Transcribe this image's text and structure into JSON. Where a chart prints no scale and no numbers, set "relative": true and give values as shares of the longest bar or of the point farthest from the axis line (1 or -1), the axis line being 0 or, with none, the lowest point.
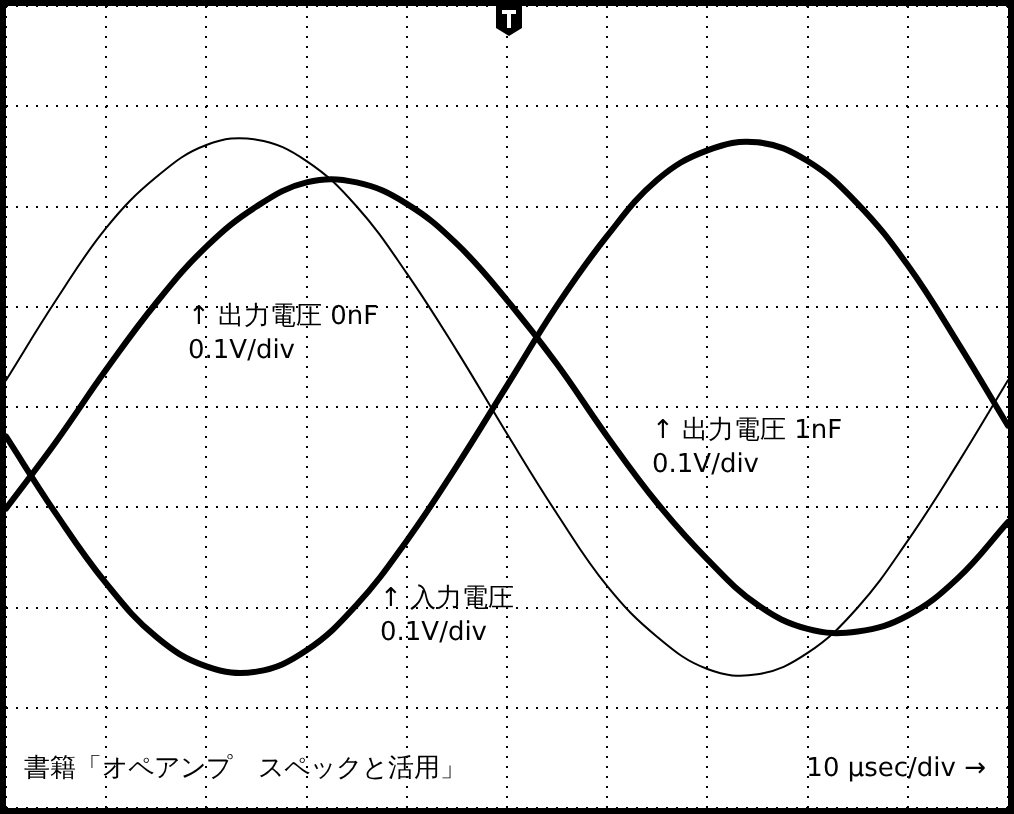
{
  "chart_data": {
    "type": "line",
    "relative": true,
    "xlabel": "10 µsec/div →",
    "grid": true,
    "marker": "none",
    "line_style": "solid",
    "annotations": [
      "↑ 出力電圧 0nF\n0.1V/div",
      "↑ 出力電圧 1nF\n0.1V/div",
      "↑ 入力電圧\n0.1V/div",
      "書籍「オペアンプ　スペックと活用」"
    ],
    "categories": [
      null,
      null,
      null,
      null,
      null,
      null,
      null,
      null,
      null,
      null,
      null,
      null,
      null,
      null,
      null,
      null,
      null,
      null,
      null,
      null,
      null
    ],
    "series": [
      {
        "color": "#000000",
        "values": [
          -0.11,
          -0.4,
          -0.66,
          -0.86,
          -0.97,
          -0.99,
          -0.91,
          -0.74,
          -0.5,
          -0.22,
          0.08,
          0.38,
          0.64,
          0.85,
          0.96,
          0.99,
          0.92,
          0.76,
          0.53,
          0.24,
          -0.07
        ]
      },
      {
        "color": "#000000",
        "values": [
          0.1,
          0.4,
          0.67,
          0.86,
          0.98,
          1.0,
          0.92,
          0.75,
          0.5,
          0.21,
          -0.1,
          -0.4,
          -0.67,
          -0.86,
          -0.98,
          -1.0,
          -0.92,
          -0.75,
          -0.5,
          -0.21,
          0.1
        ]
      },
      {
        "color": "#000000",
        "values": [
          -0.38,
          -0.13,
          0.14,
          0.39,
          0.6,
          0.75,
          0.84,
          0.84,
          0.76,
          0.61,
          0.4,
          0.16,
          -0.11,
          -0.36,
          -0.57,
          -0.74,
          -0.83,
          -0.84,
          -0.78,
          -0.64,
          -0.43
        ]
      }
    ]
  }
}
